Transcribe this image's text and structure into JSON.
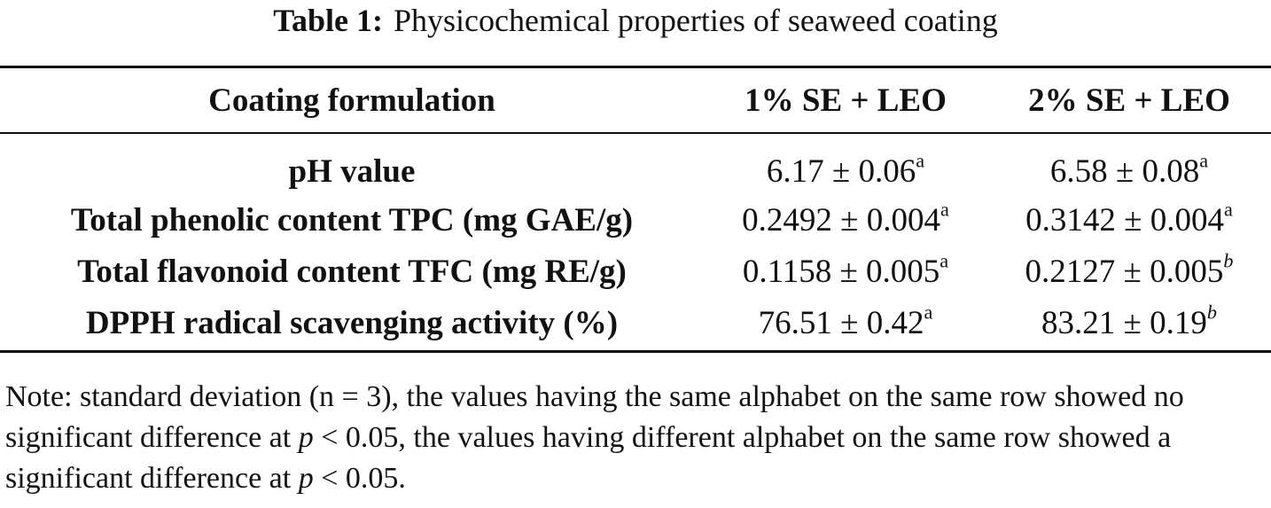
{
  "caption": {
    "label": "Table 1:",
    "title": "Physicochemical properties of seaweed coating"
  },
  "table": {
    "headers": [
      "Coating formulation",
      "1% SE + LEO",
      "2% SE + LEO"
    ],
    "rows": [
      {
        "label": "pH value",
        "c1": {
          "value": "6.17 ± 0.06",
          "sup": "a"
        },
        "c2": {
          "value": "6.58 ± 0.08",
          "sup": "a"
        }
      },
      {
        "label": "Total phenolic content TPC (mg GAE/g)",
        "c1": {
          "value": "0.2492 ± 0.004",
          "sup": "a"
        },
        "c2": {
          "value": "0.3142 ± 0.004",
          "sup": "a"
        }
      },
      {
        "label": "Total flavonoid content TFC (mg RE/g)",
        "c1": {
          "value": "0.1158 ± 0.005",
          "sup": "a"
        },
        "c2": {
          "value": "0.2127 ± 0.005",
          "sup": "b"
        }
      },
      {
        "label": "DPPH radical scavenging activity (%)",
        "c1": {
          "value": "76.51 ± 0.42",
          "sup": "a"
        },
        "c2": {
          "value": "83.21 ± 0.19",
          "sup": "b"
        }
      }
    ]
  },
  "note": {
    "part1": "Note: standard deviation (n = 3), the values having the same alphabet on the same row showed no significant difference at ",
    "p1": "p",
    "part2": " < 0.05, the values having different alphabet on the same row showed a significant difference at ",
    "p2": "p",
    "part3": " < 0.05."
  }
}
